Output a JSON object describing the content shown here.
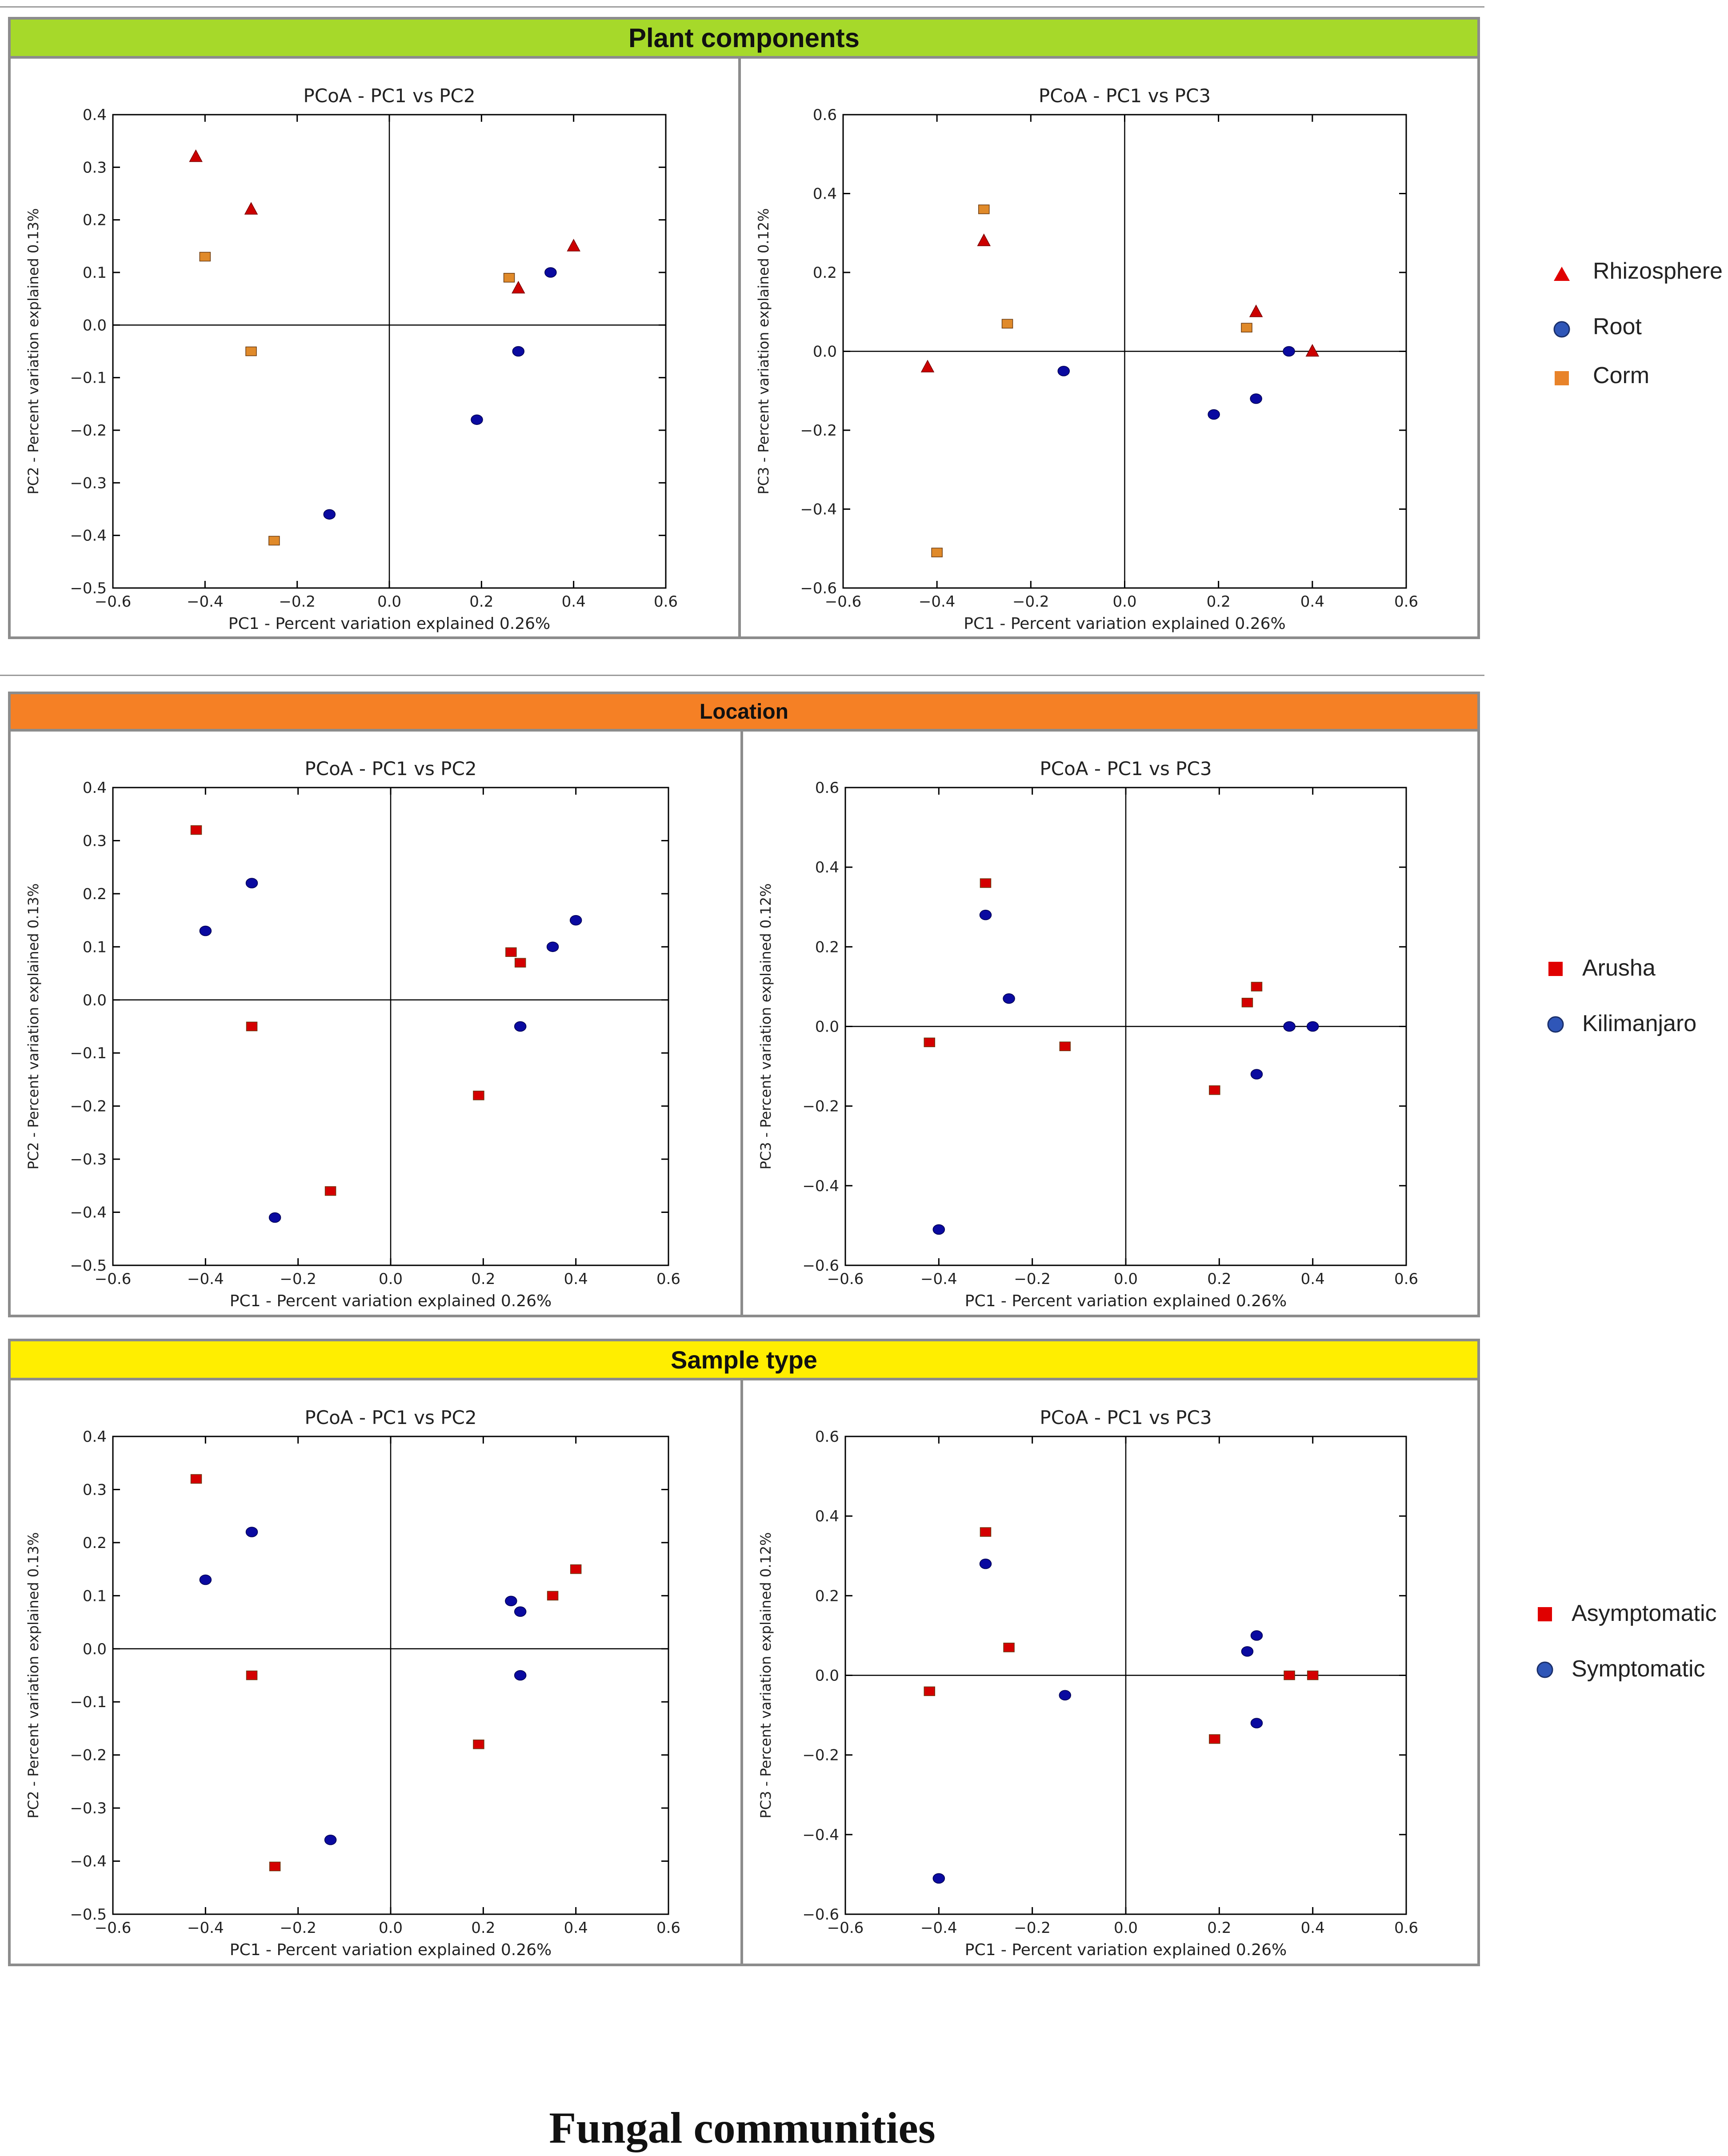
{
  "sections": [
    {
      "title": "Plant components",
      "header_color": "#a6d92a",
      "legend": [
        {
          "label": "Rhizosphere",
          "marker": "triangle",
          "color": "#e00000"
        },
        {
          "label": "Root",
          "marker": "circle",
          "color": "#1a3fa6"
        },
        {
          "label": "Corm",
          "marker": "square",
          "color": "#e8832a"
        }
      ]
    },
    {
      "title": "Location",
      "header_color": "#f58025",
      "legend": [
        {
          "label": "Arusha",
          "marker": "square",
          "color": "#e00000"
        },
        {
          "label": "Kilimanjaro",
          "marker": "circle",
          "color": "#1a3fa6"
        }
      ]
    },
    {
      "title": "Sample type",
      "header_color": "#ffee00",
      "legend": [
        {
          "label": "Asymptomatic",
          "marker": "square",
          "color": "#e00000"
        },
        {
          "label": "Symptomatic",
          "marker": "circle",
          "color": "#1a3fa6"
        }
      ]
    }
  ],
  "footer": {
    "title": "Fungal communities"
  },
  "chart_data": [
    {
      "type": "scatter",
      "section": 0,
      "panel": "left",
      "title": "PCoA - PC1 vs PC2",
      "xlabel": "PC1 - Percent variation explained 0.26%",
      "ylabel": "PC2 - Percent variation explained 0.13%",
      "xlim": [
        -0.6,
        0.6
      ],
      "ylim": [
        -0.5,
        0.4
      ],
      "xticks": [
        "−0.6",
        "−0.4",
        "−0.2",
        "0.0",
        "0.2",
        "0.4",
        "0.6"
      ],
      "yticks": [
        "0.4",
        "0.3",
        "0.2",
        "0.1",
        "0.0",
        "−0.1",
        "−0.2",
        "−0.3",
        "−0.4",
        "−0.5"
      ],
      "series": [
        {
          "name": "Rhizosphere",
          "marker": "triangle",
          "color": "#cc0000",
          "x": [
            -0.42,
            -0.3,
            0.28,
            0.4
          ],
          "y": [
            0.32,
            0.22,
            0.07,
            0.15
          ]
        },
        {
          "name": "Root",
          "marker": "circle",
          "color": "#0a0aa0",
          "x": [
            -0.13,
            0.19,
            0.28,
            0.35
          ],
          "y": [
            -0.36,
            -0.18,
            -0.05,
            0.1
          ]
        },
        {
          "name": "Corm",
          "marker": "square",
          "color": "#e08a2a",
          "x": [
            -0.4,
            -0.3,
            -0.25,
            0.26
          ],
          "y": [
            0.13,
            -0.05,
            -0.41,
            0.09
          ]
        }
      ]
    },
    {
      "type": "scatter",
      "section": 0,
      "panel": "right",
      "title": "PCoA - PC1 vs PC3",
      "xlabel": "PC1 - Percent variation explained 0.26%",
      "ylabel": "PC3 - Percent variation explained 0.12%",
      "xlim": [
        -0.6,
        0.6
      ],
      "ylim": [
        -0.6,
        0.6
      ],
      "xticks": [
        "−0.6",
        "−0.4",
        "−0.2",
        "0.0",
        "0.2",
        "0.4",
        "0.6"
      ],
      "yticks": [
        "0.6",
        "0.4",
        "0.2",
        "0.0",
        "−0.2",
        "−0.4",
        "−0.6"
      ],
      "series": [
        {
          "name": "Rhizosphere",
          "marker": "triangle",
          "color": "#cc0000",
          "x": [
            -0.42,
            -0.3,
            0.28,
            0.4
          ],
          "y": [
            -0.04,
            0.28,
            0.1,
            0.0
          ]
        },
        {
          "name": "Root",
          "marker": "circle",
          "color": "#0a0aa0",
          "x": [
            -0.13,
            0.19,
            0.28,
            0.35
          ],
          "y": [
            -0.05,
            -0.16,
            -0.12,
            0.0
          ]
        },
        {
          "name": "Corm",
          "marker": "square",
          "color": "#e08a2a",
          "x": [
            -0.4,
            -0.3,
            -0.25,
            0.26
          ],
          "y": [
            -0.51,
            0.36,
            0.07,
            0.06
          ]
        }
      ]
    },
    {
      "type": "scatter",
      "section": 1,
      "panel": "left",
      "title": "PCoA - PC1 vs PC2",
      "xlabel": "PC1 - Percent variation explained 0.26%",
      "ylabel": "PC2 - Percent variation explained 0.13%",
      "xlim": [
        -0.6,
        0.6
      ],
      "ylim": [
        -0.5,
        0.4
      ],
      "xticks": [
        "−0.6",
        "−0.4",
        "−0.2",
        "0.0",
        "0.2",
        "0.4",
        "0.6"
      ],
      "yticks": [
        "0.4",
        "0.3",
        "0.2",
        "0.1",
        "0.0",
        "−0.1",
        "−0.2",
        "−0.3",
        "−0.4",
        "−0.5"
      ],
      "series": [
        {
          "name": "Arusha",
          "marker": "square",
          "color": "#d40000",
          "x": [
            -0.42,
            -0.3,
            -0.13,
            0.19,
            0.26,
            0.28
          ],
          "y": [
            0.32,
            -0.05,
            -0.36,
            -0.18,
            0.09,
            0.07
          ]
        },
        {
          "name": "Kilimanjaro",
          "marker": "circle",
          "color": "#0a0aa0",
          "x": [
            -0.4,
            -0.3,
            -0.25,
            0.28,
            0.35,
            0.4
          ],
          "y": [
            0.13,
            0.22,
            -0.41,
            -0.05,
            0.1,
            0.15
          ]
        }
      ]
    },
    {
      "type": "scatter",
      "section": 1,
      "panel": "right",
      "title": "PCoA - PC1 vs PC3",
      "xlabel": "PC1 - Percent variation explained 0.26%",
      "ylabel": "PC3 - Percent variation explained 0.12%",
      "xlim": [
        -0.6,
        0.6
      ],
      "ylim": [
        -0.6,
        0.6
      ],
      "xticks": [
        "−0.6",
        "−0.4",
        "−0.2",
        "0.0",
        "0.2",
        "0.4",
        "0.6"
      ],
      "yticks": [
        "0.6",
        "0.4",
        "0.2",
        "0.0",
        "−0.2",
        "−0.4",
        "−0.6"
      ],
      "series": [
        {
          "name": "Arusha",
          "marker": "square",
          "color": "#d40000",
          "x": [
            -0.42,
            -0.3,
            -0.13,
            0.19,
            0.26,
            0.28
          ],
          "y": [
            -0.04,
            0.36,
            -0.05,
            -0.16,
            0.06,
            0.1
          ]
        },
        {
          "name": "Kilimanjaro",
          "marker": "circle",
          "color": "#0a0aa0",
          "x": [
            -0.4,
            -0.3,
            -0.25,
            0.28,
            0.35,
            0.4
          ],
          "y": [
            -0.51,
            0.28,
            0.07,
            -0.12,
            0.0,
            0.0
          ]
        }
      ]
    },
    {
      "type": "scatter",
      "section": 2,
      "panel": "left",
      "title": "PCoA - PC1 vs PC2",
      "xlabel": "PC1 - Percent variation explained 0.26%",
      "ylabel": "PC2 - Percent variation explained 0.13%",
      "xlim": [
        -0.6,
        0.6
      ],
      "ylim": [
        -0.5,
        0.4
      ],
      "xticks": [
        "−0.6",
        "−0.4",
        "−0.2",
        "0.0",
        "0.2",
        "0.4",
        "0.6"
      ],
      "yticks": [
        "0.4",
        "0.3",
        "0.2",
        "0.1",
        "0.0",
        "−0.1",
        "−0.2",
        "−0.3",
        "−0.4",
        "−0.5"
      ],
      "series": [
        {
          "name": "Asymptomatic",
          "marker": "square",
          "color": "#d40000",
          "x": [
            -0.42,
            -0.3,
            -0.25,
            0.19,
            0.35,
            0.4
          ],
          "y": [
            0.32,
            -0.05,
            -0.41,
            -0.18,
            0.1,
            0.15
          ]
        },
        {
          "name": "Symptomatic",
          "marker": "circle",
          "color": "#0a0aa0",
          "x": [
            -0.4,
            -0.3,
            -0.13,
            0.26,
            0.28,
            0.28
          ],
          "y": [
            0.13,
            0.22,
            -0.36,
            0.09,
            0.07,
            -0.05
          ]
        }
      ]
    },
    {
      "type": "scatter",
      "section": 2,
      "panel": "right",
      "title": "PCoA - PC1 vs PC3",
      "xlabel": "PC1 - Percent variation explained 0.26%",
      "ylabel": "PC3 - Percent variation explained 0.12%",
      "xlim": [
        -0.6,
        0.6
      ],
      "ylim": [
        -0.6,
        0.6
      ],
      "xticks": [
        "−0.6",
        "−0.4",
        "−0.2",
        "0.0",
        "0.2",
        "0.4",
        "0.6"
      ],
      "yticks": [
        "0.6",
        "0.4",
        "0.2",
        "0.0",
        "−0.2",
        "−0.4",
        "−0.6"
      ],
      "series": [
        {
          "name": "Asymptomatic",
          "marker": "square",
          "color": "#d40000",
          "x": [
            -0.42,
            -0.3,
            -0.25,
            0.19,
            0.35,
            0.4
          ],
          "y": [
            -0.04,
            0.36,
            0.07,
            -0.16,
            0.0,
            0.0
          ]
        },
        {
          "name": "Symptomatic",
          "marker": "circle",
          "color": "#0a0aa0",
          "x": [
            -0.4,
            -0.3,
            -0.13,
            0.26,
            0.28,
            0.28
          ],
          "y": [
            -0.51,
            0.28,
            -0.05,
            0.06,
            0.1,
            -0.12
          ]
        }
      ]
    }
  ]
}
